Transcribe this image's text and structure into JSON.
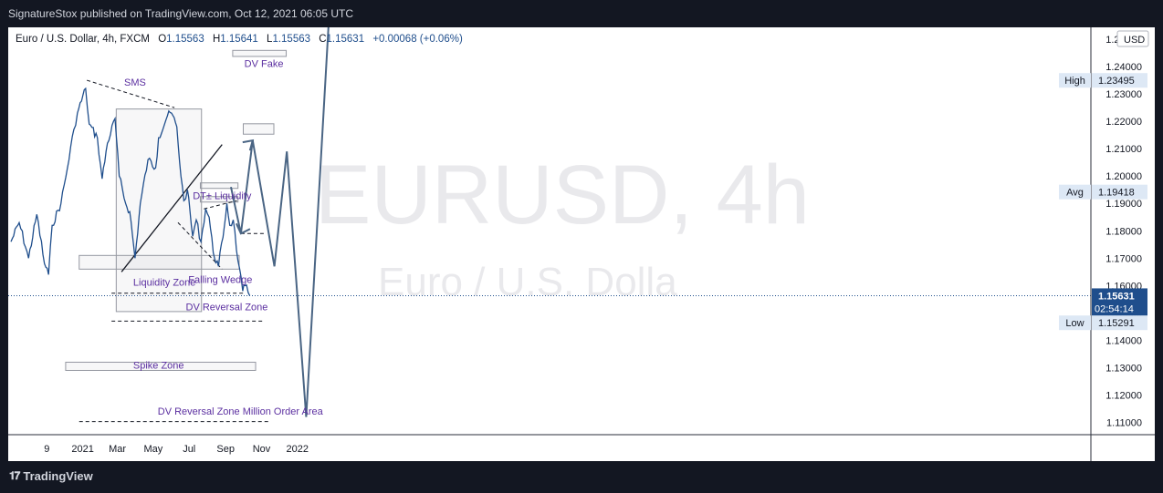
{
  "header": {
    "publish_line": "SignatureStox published on TradingView.com, Oct 12, 2021 06:05 UTC"
  },
  "footer": {
    "logo_mark": "𝟏𝟕",
    "brand": "TradingView"
  },
  "colors": {
    "price": "#1f4e8c",
    "ann_text": "#5b2fa0",
    "axis_text": "#131722",
    "current_price_bg": "#1f4e8c",
    "label_bg": "#dde8f5"
  },
  "chart_data": {
    "type": "line",
    "symbol_line": {
      "name": "Euro / U.S. Dollar, 4h, FXCM",
      "o_label": "O",
      "o": "1.15563",
      "h_label": "H",
      "h": "1.15641",
      "l_label": "L",
      "l": "1.15563",
      "c_label": "C",
      "c": "1.15631",
      "change": "+0.00068 (+0.06%)"
    },
    "watermark": {
      "main": "EURUSD, 4h",
      "sub": "Euro / U.S. Dolla"
    },
    "ylim": [
      1.103,
      1.253
    ],
    "y_ticks": [
      "1.25000",
      "1.24000",
      "1.23000",
      "1.22000",
      "1.21000",
      "1.20000",
      "1.19000",
      "1.18000",
      "1.17000",
      "1.16000",
      "1.15000",
      "1.14000",
      "1.13000",
      "1.12000",
      "1.11000"
    ],
    "currency": "USD",
    "x_tick_labels": [
      {
        "date": "2020-11-01",
        "label": "9"
      },
      {
        "date": "2021-01-01",
        "label": "2021"
      },
      {
        "date": "2021-03-01",
        "label": "Mar"
      },
      {
        "date": "2021-05-01",
        "label": "May"
      },
      {
        "date": "2021-07-01",
        "label": "Jul"
      },
      {
        "date": "2021-09-01",
        "label": "Sep"
      },
      {
        "date": "2021-11-01",
        "label": "Nov"
      },
      {
        "date": "2022-01-01",
        "label": "2022"
      }
    ],
    "price_series": [
      [
        "2020-09-01",
        1.176
      ],
      [
        "2020-09-15",
        1.183
      ],
      [
        "2020-10-01",
        1.17
      ],
      [
        "2020-10-15",
        1.186
      ],
      [
        "2020-10-28",
        1.168
      ],
      [
        "2020-11-04",
        1.164
      ],
      [
        "2020-11-10",
        1.182
      ],
      [
        "2020-11-25",
        1.19
      ],
      [
        "2020-12-06",
        1.203
      ],
      [
        "2020-12-17",
        1.217
      ],
      [
        "2020-12-23",
        1.223
      ],
      [
        "2021-01-06",
        1.232
      ],
      [
        "2021-01-12",
        1.219
      ],
      [
        "2021-01-26",
        1.214
      ],
      [
        "2021-02-03",
        1.199
      ],
      [
        "2021-02-12",
        1.212
      ],
      [
        "2021-02-25",
        1.221
      ],
      [
        "2021-03-04",
        1.2
      ],
      [
        "2021-03-15",
        1.19
      ],
      [
        "2021-03-22",
        1.187
      ],
      [
        "2021-03-31",
        1.17
      ],
      [
        "2021-04-09",
        1.19
      ],
      [
        "2021-04-22",
        1.206
      ],
      [
        "2021-05-05",
        1.203
      ],
      [
        "2021-05-10",
        1.214
      ],
      [
        "2021-05-25",
        1.222
      ],
      [
        "2021-06-01",
        1.223
      ],
      [
        "2021-06-10",
        1.218
      ],
      [
        "2021-06-17",
        1.2
      ],
      [
        "2021-06-22",
        1.191
      ],
      [
        "2021-06-28",
        1.195
      ],
      [
        "2021-07-07",
        1.178
      ],
      [
        "2021-07-13",
        1.184
      ],
      [
        "2021-07-21",
        1.176
      ],
      [
        "2021-07-29",
        1.188
      ],
      [
        "2021-08-04",
        1.185
      ],
      [
        "2021-08-11",
        1.172
      ],
      [
        "2021-08-20",
        1.167
      ],
      [
        "2021-08-30",
        1.182
      ],
      [
        "2021-09-03",
        1.19
      ],
      [
        "2021-09-08",
        1.182
      ],
      [
        "2021-09-14",
        1.184
      ],
      [
        "2021-09-22",
        1.169
      ],
      [
        "2021-09-30",
        1.158
      ],
      [
        "2021-10-04",
        1.16
      ],
      [
        "2021-10-12",
        1.1563
      ]
    ],
    "projection": [
      [
        "2021-09-10",
        1.196
      ],
      [
        "2021-09-27",
        1.179
      ],
      [
        "2021-10-17",
        1.213
      ],
      [
        "2021-11-23",
        1.167
      ],
      [
        "2021-12-14",
        1.209
      ],
      [
        "2022-01-16",
        1.112
      ],
      [
        "2022-02-23",
        1.255
      ]
    ],
    "zones": [
      {
        "label": "",
        "from": "2021-09-13",
        "to": "2021-12-13",
        "y_low": 1.2437,
        "y_high": 1.2459
      },
      {
        "label": "",
        "from": "2021-10-01",
        "to": "2021-11-22",
        "y_low": 1.2153,
        "y_high": 1.2191
      },
      {
        "label": "",
        "from": "2021-07-20",
        "to": "2021-09-22",
        "y_low": 1.1955,
        "y_high": 1.1975
      },
      {
        "label": "",
        "from": "2021-02-27",
        "to": "2021-07-22",
        "y_low": 1.1505,
        "y_high": 1.2245
      },
      {
        "label": "",
        "from": "2021-07-20",
        "to": "2021-09-22",
        "y_low": 1.1905,
        "y_high": 1.1925
      },
      {
        "label": "",
        "from": "2020-12-26",
        "to": "2021-09-24",
        "y_low": 1.166,
        "y_high": 1.171
      },
      {
        "label": "",
        "from": "2020-12-03",
        "to": "2021-10-22",
        "y_low": 1.129,
        "y_high": 1.132
      }
    ],
    "lines": [
      {
        "label": "",
        "style": "dashed",
        "from": [
          "2021-01-08",
          1.235
        ],
        "to": [
          "2021-06-06",
          1.225
        ]
      },
      {
        "label": "",
        "style": "solid",
        "from": [
          "2021-03-08",
          1.165
        ],
        "to": [
          "2021-08-26",
          1.2115
        ]
      },
      {
        "label": "",
        "style": "dashed",
        "from": [
          "2021-06-12",
          1.183
        ],
        "to": [
          "2021-08-26",
          1.166
        ]
      },
      {
        "label": "",
        "style": "dashed",
        "from": [
          "2021-07-26",
          1.188
        ],
        "to": [
          "2021-09-20",
          1.191
        ]
      },
      {
        "label": "",
        "style": "dashed",
        "from": [
          "2021-02-19",
          1.1572
        ],
        "to": [
          "2021-10-05",
          1.1572
        ]
      },
      {
        "label": "",
        "style": "dashed",
        "from": [
          "2021-02-19",
          1.147
        ],
        "to": [
          "2021-11-04",
          1.147
        ]
      },
      {
        "label": "",
        "style": "dashed",
        "from": [
          "2021-09-27",
          1.179
        ],
        "to": [
          "2021-11-09",
          1.179
        ]
      },
      {
        "label": "",
        "style": "dashed",
        "from": [
          "2020-12-26",
          1.1103
        ],
        "to": [
          "2021-11-14",
          1.1103
        ]
      }
    ],
    "annotations": [
      {
        "text": "SMS",
        "x": "2021-03-31",
        "y": 1.233
      },
      {
        "text": "DV Fake",
        "x": "2021-11-05",
        "y": 1.2399
      },
      {
        "text": "DT± Liquidity",
        "x": "2021-08-26",
        "y": 1.1915
      },
      {
        "text": "Liquidity Zone",
        "x": "2021-05-20",
        "y": 1.16
      },
      {
        "text": "Falling Wedge",
        "x": "2021-08-23",
        "y": 1.161
      },
      {
        "text": "DV Reversal Zone",
        "x": "2021-09-03",
        "y": 1.151
      },
      {
        "text": "Spike Zone",
        "x": "2021-05-10",
        "y": 1.1297
      },
      {
        "text": "DV Reversal Zone Million Order Area",
        "x": "2021-09-26",
        "y": 1.1128
      }
    ],
    "price_labels": [
      {
        "label": "High",
        "value": "1.23495",
        "y": 1.23495
      },
      {
        "label": "Avg",
        "value": "1.19418",
        "y": 1.19418
      },
      {
        "label": "",
        "value": "1.15631",
        "y": 1.15631,
        "countdown": "02:54:14"
      },
      {
        "label": "Low",
        "value": "1.15291",
        "y": 1.1464
      }
    ]
  }
}
